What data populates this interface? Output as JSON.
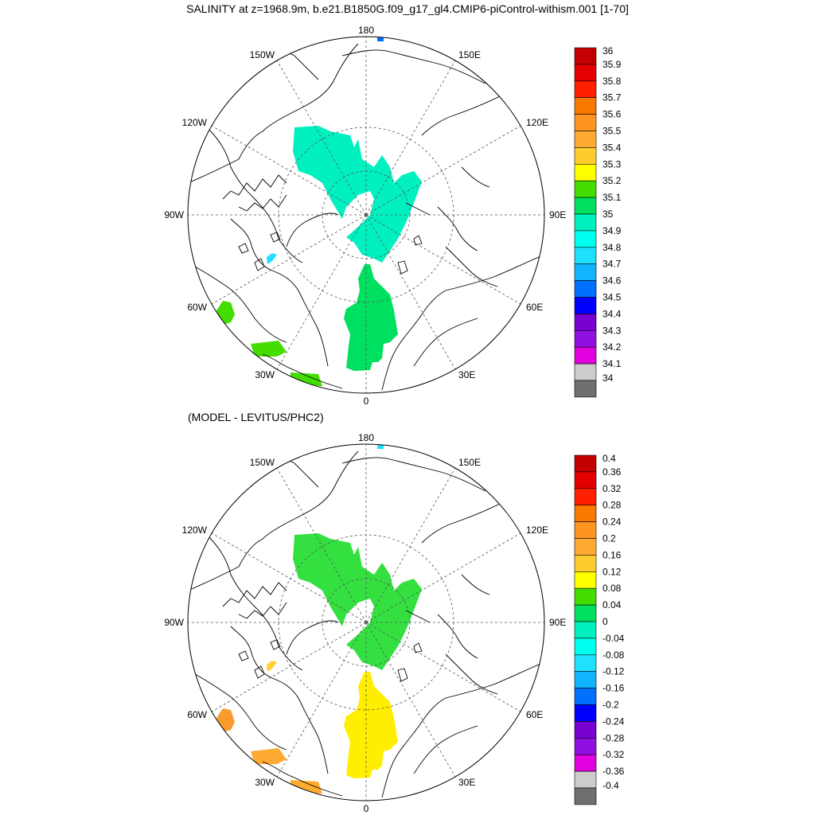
{
  "title": "SALINITY at z=1968.9m, b.e21.B1850G.f09_g17_gl4.CMIP6-piControl-withism.001 [1-70]",
  "subtitle": "(MODEL - LEVITUS/PHC2)",
  "map_labels": {
    "top": "180",
    "bottom": "0",
    "left": "90W",
    "right": "90E",
    "w150": "150W",
    "e150": "150E",
    "w120": "120W",
    "e120": "120E",
    "w60": "60W",
    "e60": "60E",
    "w30": "30W",
    "e30": "30E"
  },
  "colors": {
    "land_line": "#000000",
    "grid_line": "#555555"
  },
  "chart_data": [
    {
      "type": "heatmap",
      "name": "salinity",
      "projection": "north-polar-stereographic",
      "colorbar": {
        "labels": [
          "36",
          "35.9",
          "35.8",
          "35.7",
          "35.6",
          "35.5",
          "35.4",
          "35.3",
          "35.2",
          "35.1",
          "35",
          "34.9",
          "34.8",
          "34.7",
          "34.6",
          "34.5",
          "34.4",
          "34.3",
          "34.2",
          "34.1",
          "34"
        ],
        "colors": [
          "#c40000",
          "#e40000",
          "#ff2000",
          "#f87800",
          "#ff9420",
          "#ffaa30",
          "#ffcc30",
          "#ffff00",
          "#44dd00",
          "#00e060",
          "#00f0c0",
          "#00ffee",
          "#20e0ff",
          "#10b4ff",
          "#0070ff",
          "#0000ff",
          "#7800d0",
          "#9010e0",
          "#e000e0",
          "#cccccc",
          "#707070"
        ]
      },
      "regions": [
        {
          "area": "eurasian-basin",
          "value_range": [
            34.95,
            35.05
          ],
          "color": "#00f0c0"
        },
        {
          "area": "fram-strait-nordic-seas",
          "value_range": [
            35.1,
            35.2
          ],
          "color": "#00e060"
        },
        {
          "area": "baffin-bay",
          "value_range": [
            35.2,
            35.3
          ],
          "color": "#44dd00"
        },
        {
          "area": "irminger-labrador",
          "value_range": [
            35.2,
            35.3
          ],
          "color": "#44dd00"
        },
        {
          "area": "canadian-archipelago-patch",
          "value_range": [
            34.8,
            34.9
          ],
          "color": "#20e0ff"
        },
        {
          "area": "bering-strait-patch",
          "value_range": [
            34.6,
            34.7
          ],
          "color": "#0070ff"
        }
      ]
    },
    {
      "type": "heatmap",
      "name": "model-minus-levitus",
      "projection": "north-polar-stereographic",
      "colorbar": {
        "labels": [
          "0.4",
          "0.36",
          "0.32",
          "0.28",
          "0.24",
          "0.2",
          "0.16",
          "0.12",
          "0.08",
          "0.04",
          "0",
          "-0.04",
          "-0.08",
          "-0.12",
          "-0.16",
          "-0.2",
          "-0.24",
          "-0.28",
          "-0.32",
          "-0.36",
          "-0.4"
        ],
        "colors": [
          "#c40000",
          "#e40000",
          "#ff2000",
          "#f87800",
          "#ff9420",
          "#ffaa30",
          "#ffcc30",
          "#ffff00",
          "#44dd00",
          "#00e060",
          "#00f0c0",
          "#00ffee",
          "#20e0ff",
          "#10b4ff",
          "#0070ff",
          "#0000ff",
          "#7800d0",
          "#9010e0",
          "#e000e0",
          "#cccccc",
          "#707070"
        ]
      },
      "regions": [
        {
          "area": "eurasian-basin",
          "value_range": [
            0.0,
            0.04
          ],
          "color": "#33e040"
        },
        {
          "area": "fram-strait-nordic-seas",
          "value_range": [
            0.12,
            0.16
          ],
          "color": "#ffee00"
        },
        {
          "area": "baffin-bay",
          "value_range": [
            0.2,
            0.24
          ],
          "color": "#f89a2c"
        },
        {
          "area": "irminger-labrador",
          "value_range": [
            0.16,
            0.2
          ],
          "color": "#ffaa30"
        },
        {
          "area": "canadian-archipelago-patch",
          "value_range": [
            0.12,
            0.16
          ],
          "color": "#ffd030"
        },
        {
          "area": "bering-strait-patch",
          "value_range": [
            -0.12,
            -0.08
          ],
          "color": "#20e0ff"
        }
      ]
    }
  ]
}
